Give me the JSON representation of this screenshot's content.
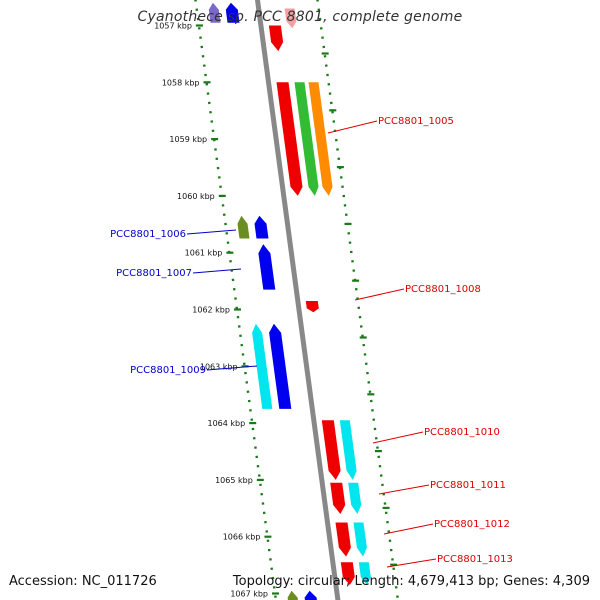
{
  "title": "Cyanothece sp. PCC 8801, complete genome",
  "footer": {
    "accession": "Accession: NC_011726",
    "summary": "Topology: circular; Length: 4,679,413 bp; Genes: 4,309"
  },
  "colors": {
    "backbone": "#888888",
    "tick_marks": "#1a7a1a",
    "label_forward": "#0000cc",
    "label_reverse": "#dd0000"
  },
  "scale_ticks": [
    {
      "kbp": 1057,
      "label": "1057 kbp"
    },
    {
      "kbp": 1058,
      "label": "1058 kbp"
    },
    {
      "kbp": 1059,
      "label": "1059 kbp"
    },
    {
      "kbp": 1060,
      "label": "1060 kbp"
    },
    {
      "kbp": 1061,
      "label": "1061 kbp"
    },
    {
      "kbp": 1062,
      "label": "1062 kbp"
    },
    {
      "kbp": 1063,
      "label": "1063 kbp"
    },
    {
      "kbp": 1064,
      "label": "1064 kbp"
    },
    {
      "kbp": 1065,
      "label": "1065 kbp"
    },
    {
      "kbp": 1066,
      "label": "1066 kbp"
    },
    {
      "kbp": 1067,
      "label": "1067 kbp"
    }
  ],
  "gene_labels": [
    {
      "name": "PCC8801_1005",
      "strand": "reverse"
    },
    {
      "name": "PCC8801_1006",
      "strand": "forward"
    },
    {
      "name": "PCC8801_1007",
      "strand": "forward"
    },
    {
      "name": "PCC8801_1008",
      "strand": "reverse"
    },
    {
      "name": "PCC8801_1009",
      "strand": "forward"
    },
    {
      "name": "PCC8801_1010",
      "strand": "reverse"
    },
    {
      "name": "PCC8801_1011",
      "strand": "reverse"
    },
    {
      "name": "PCC8801_1012",
      "strand": "reverse"
    },
    {
      "name": "PCC8801_1013",
      "strand": "reverse"
    }
  ],
  "features": [
    {
      "strand": "forward",
      "track": "gene",
      "start_kbp": 1056.6,
      "end_kbp": 1056.95,
      "color": "#0000ee"
    },
    {
      "strand": "forward",
      "track": "cog",
      "start_kbp": 1056.6,
      "end_kbp": 1056.95,
      "color": "#7b68c8"
    },
    {
      "strand": "reverse",
      "track": "gene",
      "start_kbp": 1057.0,
      "end_kbp": 1057.45,
      "color": "#ee0000"
    },
    {
      "strand": "reverse",
      "track": "cog",
      "start_kbp": 1056.7,
      "end_kbp": 1057.05,
      "color": "#f4a0a0"
    },
    {
      "strand": "reverse",
      "track": "gene",
      "start_kbp": 1058.0,
      "end_kbp": 1060.0,
      "color": "#ee0000"
    },
    {
      "strand": "reverse",
      "track": "cog",
      "start_kbp": 1058.0,
      "end_kbp": 1060.0,
      "color": "#33bb33"
    },
    {
      "strand": "reverse",
      "track": "cog2",
      "start_kbp": 1058.0,
      "end_kbp": 1060.0,
      "color": "#ff8c00"
    },
    {
      "strand": "forward",
      "track": "gene",
      "start_kbp": 1060.35,
      "end_kbp": 1060.75,
      "color": "#0000ee"
    },
    {
      "strand": "forward",
      "track": "cog",
      "start_kbp": 1060.35,
      "end_kbp": 1060.75,
      "color": "#6b8e23"
    },
    {
      "strand": "forward",
      "track": "gene",
      "start_kbp": 1060.85,
      "end_kbp": 1061.65,
      "color": "#0000ee"
    },
    {
      "strand": "reverse",
      "track": "gene",
      "start_kbp": 1061.85,
      "end_kbp": 1062.05,
      "color": "#ee0000"
    },
    {
      "strand": "forward",
      "track": "gene",
      "start_kbp": 1062.25,
      "end_kbp": 1063.75,
      "color": "#0000ee"
    },
    {
      "strand": "forward",
      "track": "cog",
      "start_kbp": 1062.25,
      "end_kbp": 1063.75,
      "color": "#00e5ee"
    },
    {
      "strand": "reverse",
      "track": "gene",
      "start_kbp": 1063.95,
      "end_kbp": 1065.0,
      "color": "#ee0000"
    },
    {
      "strand": "reverse",
      "track": "cog",
      "start_kbp": 1063.95,
      "end_kbp": 1065.0,
      "color": "#00e5ee"
    },
    {
      "strand": "reverse",
      "track": "gene",
      "start_kbp": 1065.05,
      "end_kbp": 1065.6,
      "color": "#ee0000"
    },
    {
      "strand": "reverse",
      "track": "cog",
      "start_kbp": 1065.05,
      "end_kbp": 1065.6,
      "color": "#00e5ee"
    },
    {
      "strand": "reverse",
      "track": "gene",
      "start_kbp": 1065.75,
      "end_kbp": 1066.35,
      "color": "#ee0000"
    },
    {
      "strand": "reverse",
      "track": "cog",
      "start_kbp": 1065.75,
      "end_kbp": 1066.35,
      "color": "#00e5ee"
    },
    {
      "strand": "reverse",
      "track": "gene",
      "start_kbp": 1066.45,
      "end_kbp": 1066.85,
      "color": "#ee0000"
    },
    {
      "strand": "reverse",
      "track": "cog",
      "start_kbp": 1066.45,
      "end_kbp": 1066.85,
      "color": "#00e5ee"
    },
    {
      "strand": "forward",
      "track": "gene",
      "start_kbp": 1066.95,
      "end_kbp": 1067.3,
      "color": "#0000ee"
    },
    {
      "strand": "forward",
      "track": "cog",
      "start_kbp": 1066.95,
      "end_kbp": 1067.3,
      "color": "#6b8e23"
    }
  ]
}
